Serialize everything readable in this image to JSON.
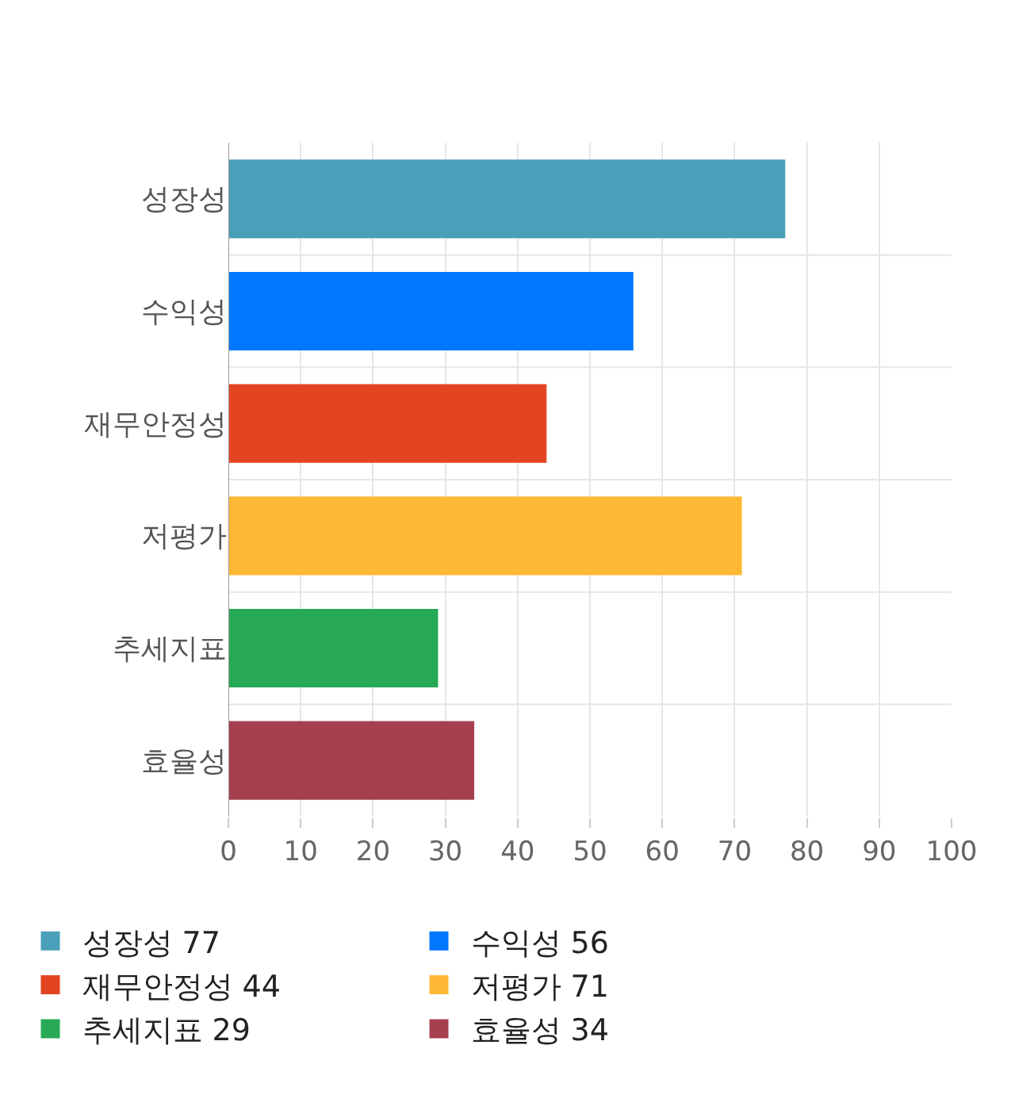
{
  "chart_data": {
    "type": "bar",
    "orientation": "horizontal",
    "categories": [
      "성장성",
      "수익성",
      "재무안정성",
      "저평가",
      "추세지표",
      "효율성"
    ],
    "series": [
      {
        "name": "성장성 77",
        "color": "#4aa0b8",
        "values": [
          77,
          null,
          null,
          null,
          null,
          null
        ]
      },
      {
        "name": "수익성 56",
        "color": "#0077ff",
        "values": [
          null,
          56,
          null,
          null,
          null,
          null
        ]
      },
      {
        "name": "재무안정성 44",
        "color": "#e34522",
        "values": [
          null,
          null,
          44,
          null,
          null,
          null
        ]
      },
      {
        "name": "저평가 71",
        "color": "#ffb833",
        "values": [
          null,
          null,
          null,
          71,
          null,
          null
        ]
      },
      {
        "name": "추세지표 29",
        "color": "#28a956",
        "values": [
          null,
          null,
          null,
          null,
          29,
          null
        ]
      },
      {
        "name": "효율성 34",
        "color": "#a6404f",
        "values": [
          null,
          null,
          null,
          null,
          null,
          34
        ]
      }
    ],
    "xlim": [
      0,
      100
    ],
    "xticks": [
      0,
      10,
      20,
      30,
      40,
      50,
      60,
      70,
      80,
      90,
      100
    ],
    "grid": true,
    "legend": "bottom"
  }
}
